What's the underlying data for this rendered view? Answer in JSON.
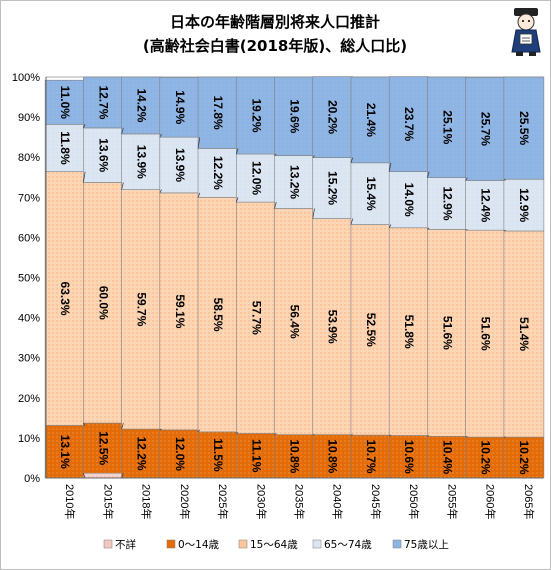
{
  "chart_data": {
    "type": "bar",
    "stacked": true,
    "percent": true,
    "title": "日本の年齢階層別将来人口推計",
    "subtitle": "(高齢社会白書(2018年版)、総人口比)",
    "categories": [
      "2010年",
      "2015年",
      "2018年",
      "2020年",
      "2025年",
      "2030年",
      "2035年",
      "2040年",
      "2045年",
      "2050年",
      "2055年",
      "2060年",
      "2065年"
    ],
    "series": [
      {
        "name": "不詳",
        "color": "#f4c7c3",
        "values": [
          0.0,
          1.2,
          0.0,
          0.0,
          0.0,
          0.0,
          0.0,
          0.0,
          0.0,
          0.0,
          0.0,
          0.0,
          0.0
        ]
      },
      {
        "name": "0〜14歳",
        "color": "#e36c09",
        "values": [
          13.1,
          12.5,
          12.2,
          12.0,
          11.5,
          11.1,
          10.8,
          10.8,
          10.7,
          10.6,
          10.4,
          10.2,
          10.2
        ]
      },
      {
        "name": "15〜64歳",
        "color": "#fbc69b",
        "values": [
          63.3,
          60.0,
          59.7,
          59.1,
          58.5,
          57.7,
          56.4,
          53.9,
          52.5,
          51.8,
          51.6,
          51.6,
          51.4
        ]
      },
      {
        "name": "65〜74歳",
        "color": "#dce6f2",
        "values": [
          11.8,
          13.6,
          13.9,
          13.9,
          12.2,
          12.0,
          13.2,
          15.2,
          15.4,
          14.0,
          12.9,
          12.4,
          12.9
        ]
      },
      {
        "name": "75歳以上",
        "color": "#8eb4e3",
        "values": [
          11.0,
          12.7,
          14.2,
          14.9,
          17.8,
          19.2,
          19.6,
          20.2,
          21.4,
          23.7,
          25.1,
          25.7,
          25.5
        ]
      }
    ],
    "labeled_series": [
      "0〜14歳",
      "15〜64歳",
      "65〜74歳",
      "75歳以上"
    ],
    "ylim": [
      0,
      100
    ],
    "yticks": [
      "0%",
      "10%",
      "20%",
      "30%",
      "40%",
      "50%",
      "60%",
      "70%",
      "80%",
      "90%",
      "100%"
    ],
    "grid": true,
    "legend_position": "bottom"
  }
}
